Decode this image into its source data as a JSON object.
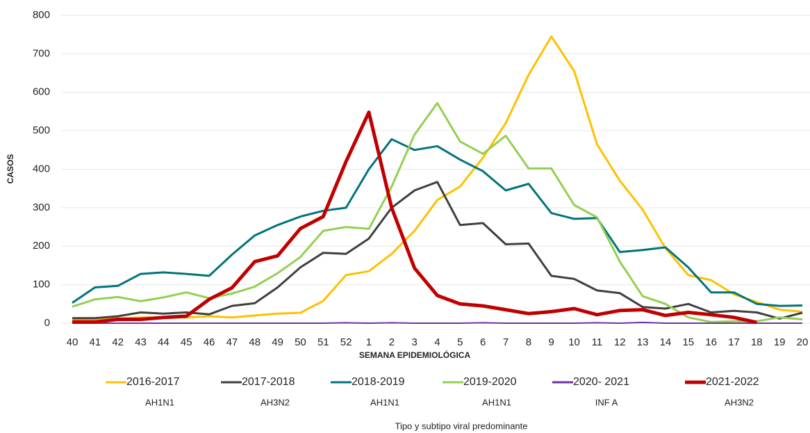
{
  "chart_data": {
    "type": "line",
    "xlabel": "SEMANA EPIDEMIOLÓGICA",
    "ylabel": "CASOS",
    "legend_title": "Tipo y subtipo viral predominante",
    "categories": [
      "40",
      "41",
      "42",
      "43",
      "44",
      "45",
      "46",
      "47",
      "48",
      "49",
      "50",
      "51",
      "52",
      "1",
      "2",
      "3",
      "4",
      "5",
      "6",
      "7",
      "8",
      "9",
      "10",
      "11",
      "12",
      "13",
      "14",
      "15",
      "16",
      "17",
      "18",
      "19",
      "20"
    ],
    "ylim": [
      0,
      800
    ],
    "yticks": [
      0,
      100,
      200,
      300,
      400,
      500,
      600,
      700,
      800
    ],
    "grid": true,
    "legend": "bottom",
    "series": [
      {
        "name": "2016-2017",
        "subtype": "AH1N1",
        "color": "#ffc000",
        "values": [
          10,
          10,
          12,
          15,
          15,
          15,
          18,
          15,
          20,
          25,
          27,
          58,
          125,
          135,
          180,
          240,
          320,
          355,
          430,
          520,
          645,
          745,
          655,
          465,
          370,
          295,
          195,
          125,
          112,
          75,
          55,
          35,
          30
        ]
      },
      {
        "name": "2017-2018",
        "subtype": "AH3N2",
        "color": "#3f3f3f",
        "values": [
          13,
          13,
          18,
          28,
          25,
          28,
          23,
          45,
          52,
          93,
          145,
          183,
          180,
          220,
          300,
          345,
          367,
          255,
          260,
          205,
          207,
          123,
          115,
          85,
          78,
          42,
          38,
          50,
          28,
          32,
          28,
          12,
          27
        ]
      },
      {
        "name": "2018-2019",
        "subtype": "AH1N1",
        "color": "#00747a",
        "values": [
          53,
          93,
          97,
          128,
          132,
          128,
          123,
          178,
          228,
          255,
          277,
          292,
          300,
          400,
          478,
          450,
          460,
          425,
          395,
          345,
          362,
          286,
          271,
          273,
          185,
          190,
          197,
          145,
          80,
          80,
          50,
          45,
          46
        ]
      },
      {
        "name": "2019-2020",
        "subtype": "AH1N1",
        "color": "#92d050",
        "values": [
          43,
          62,
          68,
          57,
          67,
          80,
          65,
          77,
          95,
          130,
          172,
          240,
          250,
          245,
          355,
          490,
          572,
          472,
          440,
          487,
          402,
          402,
          307,
          275,
          160,
          70,
          50,
          15,
          3,
          5,
          5,
          15,
          10
        ]
      },
      {
        "name": "2020- 2021",
        "subtype": "INF A",
        "color": "#7030a0",
        "values": [
          0,
          0,
          0,
          0,
          0,
          0,
          0,
          0,
          0,
          0,
          0,
          0,
          1,
          0,
          1,
          0,
          0,
          0,
          1,
          0,
          0,
          0,
          0,
          1,
          0,
          2,
          0,
          0,
          0,
          0,
          0,
          0,
          0
        ]
      },
      {
        "name": "2021-2022",
        "subtype": "AH3N2",
        "color": "#c00000",
        "values": [
          3,
          3,
          10,
          10,
          15,
          18,
          62,
          92,
          160,
          175,
          246,
          277,
          420,
          548,
          300,
          143,
          72,
          50,
          45,
          35,
          25,
          30,
          38,
          22,
          33,
          35,
          20,
          28,
          22,
          15,
          2,
          null,
          null
        ]
      }
    ]
  }
}
